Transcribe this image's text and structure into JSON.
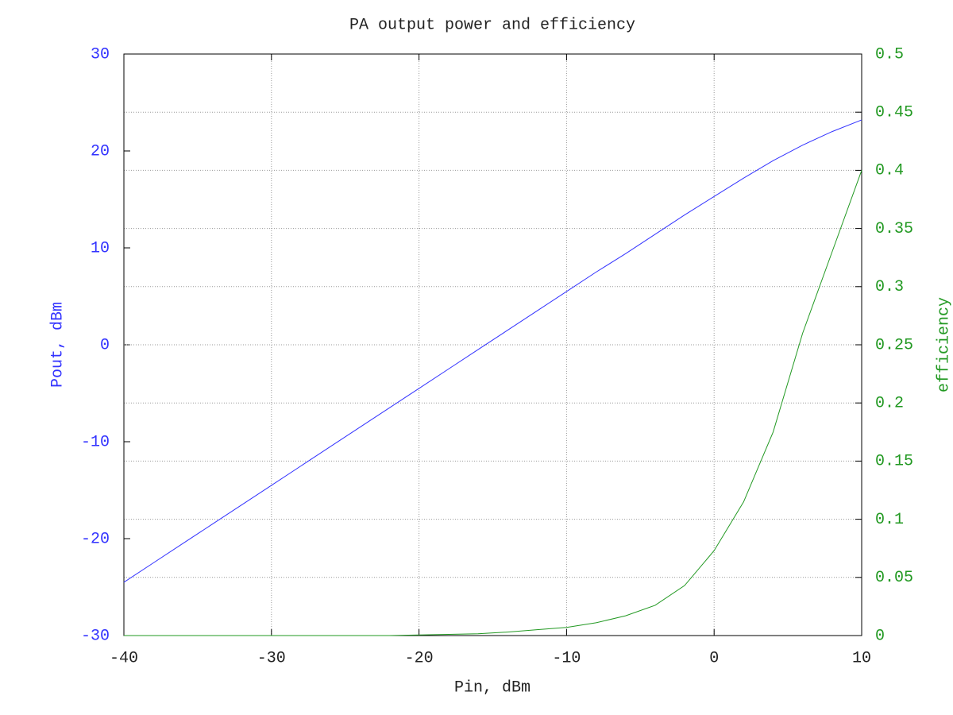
{
  "chart_data": {
    "type": "line",
    "title": "PA output power and efficiency",
    "x_label": "Pin, dBm",
    "y_label": "Pout, dBm",
    "y2_label": "efficiency",
    "x": [
      -40,
      -38,
      -36,
      -34,
      -32,
      -30,
      -28,
      -26,
      -24,
      -22,
      -20,
      -18,
      -16,
      -14,
      -12,
      -10,
      -8,
      -6,
      -4,
      -2,
      0,
      2,
      4,
      6,
      8,
      10
    ],
    "series": [
      {
        "name": "Pout, dBm",
        "color": "#3333ff",
        "axis": "y",
        "values": [
          -24.5,
          -22.5,
          -20.5,
          -18.5,
          -16.5,
          -14.5,
          -12.5,
          -10.5,
          -8.5,
          -6.5,
          -4.5,
          -2.5,
          -0.5,
          1.5,
          3.5,
          5.5,
          7.5,
          9.4,
          11.4,
          13.4,
          15.3,
          17.2,
          19.0,
          20.6,
          22.0,
          23.2
        ]
      },
      {
        "name": "efficiency",
        "color": "#229922",
        "axis": "y2",
        "values": [
          0,
          0,
          0,
          0,
          0,
          0,
          0,
          0,
          0,
          0,
          0.0005,
          0.001,
          0.0015,
          0.003,
          0.005,
          0.007,
          0.011,
          0.017,
          0.026,
          0.043,
          0.073,
          0.115,
          0.175,
          0.26,
          0.33,
          0.4
        ]
      }
    ],
    "xlim": [
      -40,
      10
    ],
    "xticks": [
      -40,
      -30,
      -20,
      -10,
      0,
      10
    ],
    "ylim": [
      -30,
      30
    ],
    "yticks": [
      -30,
      -20,
      -10,
      0,
      10,
      20,
      30
    ],
    "y2lim": [
      0,
      0.5
    ],
    "y2ticks": [
      0,
      0.05,
      0.1,
      0.15,
      0.2,
      0.25,
      0.3,
      0.35,
      0.4,
      0.45,
      0.5
    ],
    "grid": true
  }
}
